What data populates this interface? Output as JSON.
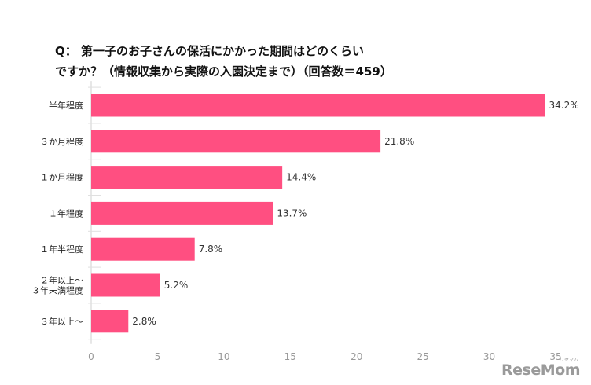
{
  "title_lines": [
    "Q： 第一子のお子さんの保活にかかった期間はどのくらい",
    "ですか？（情報収集から実際の入園決定まで）（回答数＝459）"
  ],
  "chart_data": {
    "type": "bar",
    "orientation": "horizontal",
    "categories": [
      [
        "半年程度"
      ],
      [
        "３か月程度"
      ],
      [
        "１か月程度"
      ],
      [
        "１年程度"
      ],
      [
        "１年半程度"
      ],
      [
        "２年以上～",
        "３年未満程度"
      ],
      [
        "３年以上～"
      ]
    ],
    "values": [
      34.2,
      21.8,
      14.4,
      13.7,
      7.8,
      5.2,
      2.8
    ],
    "value_labels": [
      "34.2%",
      "21.8%",
      "14.4%",
      "13.7%",
      "7.8%",
      "5.2%",
      "2.8%"
    ],
    "xlim": [
      0,
      35
    ],
    "xticks": [
      0,
      5,
      10,
      15,
      20,
      25,
      30,
      35
    ],
    "bar_color": "#ff4f81",
    "grid": false,
    "legend": "none"
  },
  "logo": {
    "text": "ReseMom",
    "small_text": "リセマム"
  }
}
